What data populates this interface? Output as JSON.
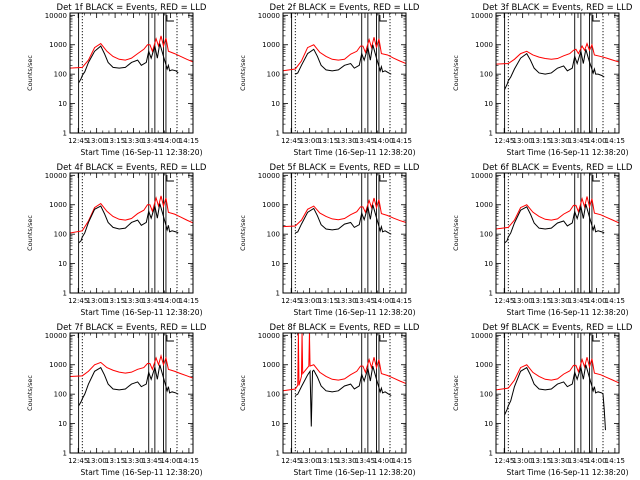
{
  "chart_data": {
    "type": "line",
    "x_tick_labels": [
      "12:45",
      "13:00",
      "13:15",
      "13:30",
      "13:45",
      "14:00",
      "14:15"
    ],
    "y_tick_labels": [
      "1",
      "10",
      "100",
      "1000",
      "10000"
    ],
    "ylabel": "Counts/sec",
    "xlabel": "Start Time (16-Sep-11 12:38:20)",
    "x_range_minutes": [
      0,
      100
    ],
    "y_scale": "log",
    "ylim": [
      1,
      12000
    ],
    "series_colors": {
      "events": "#000000",
      "lld": "#ff0000"
    },
    "solid_vertical_lines_min": [
      7,
      64,
      69,
      76,
      78
    ],
    "dotted_vertical_lines_min": [
      10,
      87
    ],
    "panels": [
      {
        "title": "Det 1f BLACK = Events, RED = LLD",
        "lld": {
          "x": [
            0,
            10,
            15,
            20,
            25,
            30,
            35,
            40,
            45,
            50,
            55,
            60,
            63,
            65,
            67,
            70,
            72,
            74,
            76,
            78,
            80,
            85,
            90,
            95,
            100
          ],
          "y": [
            160,
            170,
            300,
            800,
            1100,
            600,
            400,
            320,
            300,
            350,
            500,
            700,
            1000,
            1000,
            600,
            1600,
            900,
            2000,
            900,
            1700,
            600,
            500,
            400,
            320,
            260
          ]
        },
        "events": {
          "x": [
            7,
            9,
            10,
            12,
            15,
            20,
            25,
            28,
            31,
            35,
            40,
            45,
            50,
            55,
            58,
            62,
            64,
            66,
            69,
            71,
            73,
            76,
            79,
            80,
            81,
            83,
            86,
            88
          ],
          "y": [
            50,
            70,
            90,
            120,
            250,
            600,
            900,
            500,
            250,
            170,
            160,
            170,
            250,
            300,
            200,
            250,
            600,
            350,
            900,
            350,
            1100,
            400,
            150,
            200,
            130,
            140,
            130,
            110
          ]
        }
      },
      {
        "title": "Det 2f BLACK = Events, RED = LLD",
        "lld": {
          "x": [
            0,
            10,
            15,
            20,
            25,
            30,
            35,
            40,
            45,
            50,
            55,
            60,
            63,
            65,
            67,
            70,
            72,
            74,
            76,
            78,
            80,
            85,
            90,
            95,
            100
          ],
          "y": [
            130,
            150,
            280,
            800,
            1000,
            550,
            400,
            320,
            300,
            320,
            480,
            600,
            900,
            900,
            550,
            1500,
            800,
            1800,
            800,
            1600,
            500,
            450,
            350,
            280,
            230
          ]
        },
        "events": {
          "x": [
            10,
            12,
            15,
            20,
            25,
            28,
            31,
            35,
            40,
            45,
            50,
            55,
            58,
            62,
            64,
            66,
            69,
            71,
            73,
            76,
            79,
            80,
            81,
            83,
            86,
            88
          ],
          "y": [
            100,
            110,
            200,
            500,
            700,
            400,
            200,
            140,
            130,
            140,
            200,
            230,
            160,
            200,
            500,
            300,
            800,
            300,
            1000,
            350,
            130,
            180,
            120,
            130,
            110,
            100
          ]
        }
      },
      {
        "title": "Det 3f BLACK = Events, RED = LLD",
        "lld": {
          "x": [
            0,
            10,
            15,
            20,
            25,
            30,
            35,
            40,
            45,
            50,
            55,
            60,
            63,
            65,
            67,
            70,
            72,
            74,
            76,
            78,
            80,
            85,
            90,
            95,
            100
          ],
          "y": [
            220,
            230,
            320,
            500,
            600,
            450,
            380,
            340,
            320,
            340,
            420,
            500,
            650,
            700,
            500,
            900,
            650,
            1100,
            650,
            1000,
            450,
            400,
            350,
            300,
            260
          ]
        },
        "events": {
          "x": [
            7,
            9,
            10,
            12,
            15,
            20,
            25,
            28,
            31,
            35,
            40,
            45,
            50,
            55,
            58,
            62,
            64,
            66,
            69,
            71,
            73,
            76,
            79,
            80,
            81,
            83,
            86,
            88
          ],
          "y": [
            30,
            45,
            60,
            80,
            150,
            350,
            500,
            300,
            160,
            110,
            100,
            110,
            160,
            190,
            130,
            160,
            400,
            230,
            600,
            230,
            700,
            260,
            110,
            150,
            100,
            100,
            90,
            80
          ]
        }
      },
      {
        "title": "Det 4f BLACK = Events, RED = LLD",
        "lld": {
          "x": [
            0,
            10,
            15,
            20,
            25,
            30,
            35,
            40,
            45,
            50,
            55,
            60,
            63,
            65,
            67,
            70,
            72,
            74,
            76,
            78,
            80,
            85,
            90,
            95,
            100
          ],
          "y": [
            110,
            130,
            280,
            800,
            1100,
            600,
            400,
            320,
            300,
            340,
            500,
            650,
            1000,
            1000,
            600,
            1700,
            900,
            2000,
            900,
            1700,
            550,
            480,
            380,
            300,
            240
          ]
        },
        "events": {
          "x": [
            7,
            9,
            10,
            12,
            15,
            20,
            25,
            28,
            31,
            35,
            40,
            45,
            50,
            55,
            58,
            62,
            64,
            66,
            69,
            71,
            73,
            76,
            79,
            80,
            81,
            83,
            86,
            88
          ],
          "y": [
            50,
            60,
            80,
            110,
            250,
            700,
            900,
            500,
            250,
            170,
            150,
            160,
            250,
            300,
            200,
            250,
            600,
            350,
            900,
            350,
            1100,
            400,
            140,
            200,
            120,
            130,
            120,
            110
          ]
        }
      },
      {
        "title": "Det 5f BLACK = Events, RED = LLD",
        "lld": {
          "x": [
            0,
            10,
            15,
            20,
            25,
            30,
            35,
            40,
            45,
            50,
            55,
            60,
            63,
            65,
            67,
            70,
            72,
            74,
            76,
            78,
            80,
            85,
            90,
            95,
            100
          ],
          "y": [
            180,
            190,
            300,
            700,
            900,
            520,
            400,
            330,
            310,
            340,
            460,
            580,
            850,
            850,
            550,
            1400,
            800,
            1700,
            800,
            1500,
            500,
            430,
            350,
            290,
            250
          ]
        },
        "events": {
          "x": [
            10,
            12,
            15,
            20,
            25,
            28,
            31,
            35,
            40,
            45,
            50,
            55,
            58,
            62,
            64,
            66,
            69,
            71,
            73,
            76,
            79,
            80,
            81,
            83,
            86,
            88
          ],
          "y": [
            110,
            120,
            220,
            550,
            750,
            420,
            210,
            150,
            140,
            150,
            220,
            250,
            170,
            210,
            520,
            310,
            850,
            320,
            1000,
            360,
            130,
            180,
            120,
            130,
            110,
            100
          ]
        }
      },
      {
        "title": "Det 6f BLACK = Events, RED = LLD",
        "lld": {
          "x": [
            0,
            10,
            15,
            20,
            25,
            30,
            35,
            40,
            45,
            50,
            55,
            60,
            63,
            65,
            67,
            70,
            72,
            74,
            76,
            78,
            80,
            85,
            90,
            95,
            100
          ],
          "y": [
            150,
            170,
            300,
            800,
            1000,
            560,
            400,
            320,
            300,
            330,
            480,
            620,
            950,
            950,
            580,
            1600,
            850,
            1900,
            850,
            1600,
            520,
            460,
            370,
            300,
            240
          ]
        },
        "events": {
          "x": [
            7,
            9,
            10,
            12,
            15,
            20,
            25,
            28,
            31,
            35,
            40,
            45,
            50,
            55,
            58,
            62,
            64,
            66,
            69,
            71,
            73,
            76,
            79,
            80,
            81,
            83,
            86,
            88
          ],
          "y": [
            50,
            60,
            80,
            110,
            240,
            650,
            850,
            480,
            240,
            160,
            150,
            160,
            240,
            280,
            190,
            240,
            580,
            340,
            880,
            340,
            1050,
            380,
            140,
            190,
            120,
            130,
            120,
            110
          ]
        }
      },
      {
        "title": "Det 7f BLACK = Events, RED = LLD",
        "lld": {
          "x": [
            0,
            10,
            15,
            20,
            25,
            30,
            35,
            40,
            45,
            50,
            55,
            60,
            63,
            65,
            67,
            70,
            72,
            74,
            76,
            78,
            80,
            85,
            90,
            95,
            100
          ],
          "y": [
            400,
            420,
            600,
            1000,
            1200,
            800,
            650,
            560,
            520,
            560,
            700,
            800,
            1100,
            1100,
            700,
            1700,
            1000,
            2000,
            1000,
            1700,
            700,
            600,
            500,
            420,
            350
          ]
        },
        "events": {
          "x": [
            7,
            9,
            10,
            12,
            15,
            20,
            25,
            28,
            31,
            35,
            40,
            45,
            50,
            55,
            58,
            62,
            64,
            66,
            69,
            71,
            73,
            76,
            79,
            80,
            81,
            83,
            86,
            88
          ],
          "y": [
            40,
            55,
            70,
            100,
            220,
            600,
            800,
            450,
            220,
            150,
            140,
            150,
            220,
            260,
            180,
            220,
            550,
            320,
            820,
            320,
            1000,
            360,
            130,
            180,
            110,
            120,
            110,
            100
          ]
        }
      },
      {
        "title": "Det 8f BLACK = Events, RED = LLD",
        "lld": {
          "x": [
            0,
            10,
            12,
            12.5,
            13,
            15,
            15.5,
            16,
            20,
            21,
            21.5,
            22,
            25,
            30,
            35,
            40,
            45,
            50,
            55,
            60,
            63,
            65,
            67,
            70,
            72,
            74,
            76,
            78,
            80,
            85,
            90,
            95,
            100
          ],
          "y": [
            130,
            150,
            200,
            12000,
            200,
            400,
            12000,
            500,
            800,
            900,
            12000,
            900,
            1000,
            550,
            400,
            320,
            300,
            330,
            460,
            600,
            900,
            900,
            550,
            1500,
            800,
            1800,
            800,
            1500,
            500,
            430,
            350,
            280,
            230
          ]
        },
        "events": {
          "x": [
            10,
            12,
            15,
            20,
            22,
            23,
            24,
            25,
            28,
            31,
            35,
            40,
            45,
            50,
            55,
            58,
            62,
            64,
            66,
            69,
            71,
            73,
            76,
            79,
            80,
            81,
            83,
            86,
            88
          ],
          "y": [
            90,
            100,
            180,
            450,
            600,
            8,
            600,
            650,
            380,
            190,
            130,
            120,
            130,
            190,
            220,
            150,
            190,
            470,
            280,
            750,
            280,
            900,
            320,
            120,
            160,
            110,
            120,
            100,
            90
          ]
        }
      },
      {
        "title": "Det 9f BLACK = Events, RED = LLD",
        "lld": {
          "x": [
            0,
            10,
            15,
            20,
            25,
            30,
            35,
            40,
            45,
            50,
            55,
            60,
            63,
            65,
            67,
            70,
            72,
            74,
            76,
            78,
            80,
            85,
            90,
            95,
            100
          ],
          "y": [
            140,
            160,
            300,
            800,
            1000,
            550,
            400,
            320,
            300,
            330,
            480,
            620,
            950,
            950,
            580,
            1500,
            850,
            1800,
            850,
            1600,
            520,
            460,
            370,
            300,
            240
          ]
        },
        "events": {
          "x": [
            7,
            9,
            10,
            12,
            15,
            20,
            25,
            28,
            31,
            35,
            40,
            45,
            50,
            55,
            58,
            62,
            64,
            66,
            69,
            71,
            73,
            76,
            79,
            80,
            81,
            83,
            86,
            87,
            88,
            89
          ],
          "y": [
            20,
            30,
            40,
            60,
            180,
            600,
            800,
            450,
            220,
            150,
            140,
            150,
            220,
            260,
            180,
            220,
            550,
            320,
            820,
            320,
            1000,
            360,
            130,
            180,
            110,
            120,
            110,
            100,
            30,
            6
          ]
        }
      }
    ]
  }
}
